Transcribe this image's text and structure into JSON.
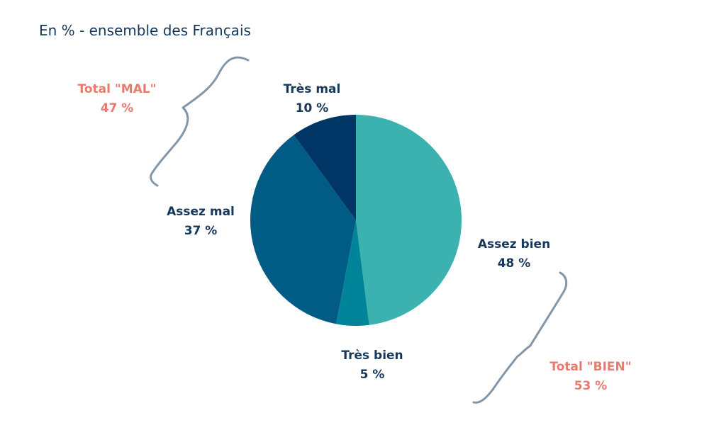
{
  "chart_data": {
    "type": "pie",
    "subtitle": "En % - ensemble des Français",
    "slices": [
      {
        "label": "Assez bien",
        "value": 48,
        "value_label": "48 %",
        "color": "#3bb2b0"
      },
      {
        "label": "Très bien",
        "value": 5,
        "value_label": "5 %",
        "color": "#00849a"
      },
      {
        "label": "Assez mal",
        "value": 37,
        "value_label": "37 %",
        "color": "#005b85"
      },
      {
        "label": "Très mal",
        "value": 10,
        "value_label": "10 %",
        "color": "#003666"
      }
    ],
    "totals": [
      {
        "label": "Total  \"MAL\"",
        "value_label": "47 %"
      },
      {
        "label": "Total \"BIEN\"",
        "value_label": "53 %"
      }
    ],
    "colors": {
      "label_text": "#16385a",
      "total_text": "#e77b6d",
      "brace": "#8296a8"
    }
  }
}
